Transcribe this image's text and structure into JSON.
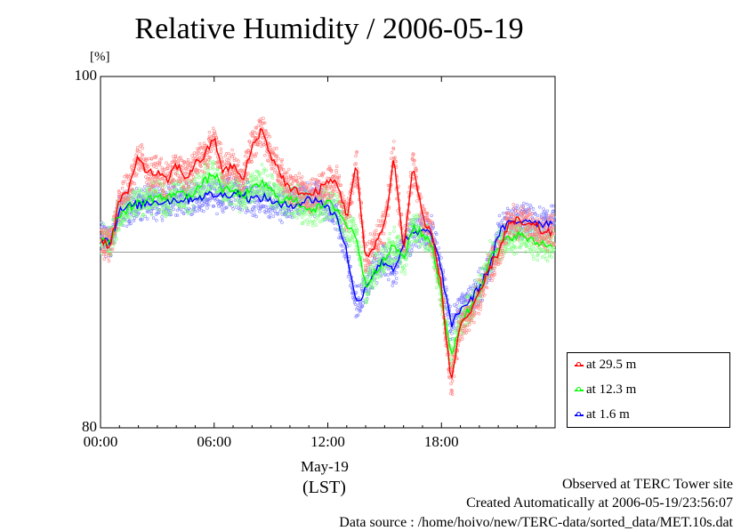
{
  "chart_data": {
    "type": "line",
    "title": "Relative Humidity / 2006-05-19",
    "ylabel": "[%]",
    "ylim": [
      80,
      100
    ],
    "yticks": [
      "80",
      "100"
    ],
    "xlim": [
      0,
      24
    ],
    "xticks": [
      {
        "value": 0,
        "label": "00:00"
      },
      {
        "value": 6,
        "label": "06:00"
      },
      {
        "value": 12,
        "label": "12:00"
      },
      {
        "value": 18,
        "label": "18:00"
      }
    ],
    "xdate_label": "May-19",
    "xunit_label": "(LST)",
    "reference_line": 90,
    "legend_position": "bottom-right outside",
    "x": [
      0.0,
      0.5,
      1.0,
      1.5,
      2.0,
      2.5,
      3.0,
      3.5,
      4.0,
      4.5,
      5.0,
      5.5,
      6.0,
      6.5,
      7.0,
      7.5,
      8.0,
      8.5,
      9.0,
      9.5,
      10.0,
      10.5,
      11.0,
      11.5,
      12.0,
      12.5,
      13.0,
      13.5,
      14.0,
      14.5,
      15.0,
      15.5,
      16.0,
      16.5,
      17.0,
      17.5,
      18.0,
      18.5,
      19.0,
      19.5,
      20.0,
      20.5,
      21.0,
      21.5,
      22.0,
      22.5,
      23.0,
      23.5,
      23.9
    ],
    "series": [
      {
        "name": "at 29.5 m",
        "color": "#ff0000",
        "values": [
          90.8,
          90.3,
          93.0,
          93.5,
          95.5,
          94.5,
          94.5,
          94.0,
          95.0,
          94.2,
          95.0,
          95.5,
          96.5,
          94.5,
          95.0,
          94.0,
          96.0,
          97.0,
          95.5,
          94.5,
          93.5,
          93.5,
          93.2,
          93.5,
          94.0,
          94.0,
          92.0,
          95.0,
          89.5,
          90.5,
          91.5,
          95.5,
          90.0,
          95.0,
          92.0,
          91.0,
          88.0,
          82.5,
          86.0,
          86.5,
          87.5,
          89.0,
          90.0,
          91.5,
          91.8,
          91.5,
          91.5,
          91.0,
          91.2
        ]
      },
      {
        "name": "at 12.3 m",
        "color": "#00ff00",
        "values": [
          90.8,
          90.5,
          92.2,
          92.5,
          92.8,
          93.0,
          93.2,
          93.0,
          93.5,
          93.2,
          93.5,
          94.0,
          94.5,
          93.5,
          93.5,
          93.2,
          93.5,
          94.0,
          93.5,
          93.0,
          93.0,
          92.8,
          92.5,
          92.5,
          92.8,
          92.5,
          91.5,
          91.0,
          88.0,
          89.0,
          89.5,
          90.5,
          89.5,
          91.5,
          91.0,
          90.5,
          87.5,
          84.0,
          86.0,
          86.8,
          87.8,
          89.5,
          90.2,
          90.8,
          91.0,
          90.8,
          90.5,
          90.5,
          90.3
        ]
      },
      {
        "name": "at 1.6 m",
        "color": "#0000ff",
        "values": [
          90.8,
          90.6,
          92.3,
          92.6,
          92.7,
          92.8,
          92.9,
          92.9,
          93.0,
          93.0,
          93.1,
          93.2,
          93.3,
          93.2,
          93.4,
          93.3,
          93.0,
          93.1,
          93.0,
          92.6,
          92.7,
          92.8,
          93.0,
          93.0,
          92.5,
          92.0,
          90.0,
          87.0,
          88.0,
          89.0,
          89.5,
          89.0,
          90.5,
          91.0,
          91.2,
          91.0,
          89.0,
          85.8,
          86.8,
          87.2,
          88.0,
          89.0,
          91.0,
          91.6,
          91.7,
          91.9,
          91.7,
          91.6,
          91.8
        ]
      }
    ]
  },
  "footer": {
    "line1": "Observed at TERC Tower site",
    "line2": "Created Automatically at 2006-05-19/23:56:07",
    "line3": "Data source : /home/hoivo/new/TERC-data/sorted_data/MET.10s.dat"
  }
}
